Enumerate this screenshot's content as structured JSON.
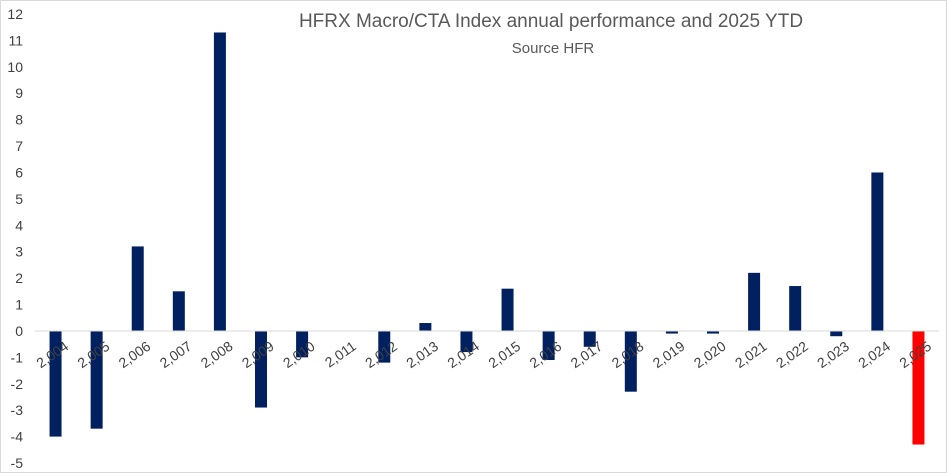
{
  "chart_data": {
    "type": "bar",
    "title": "HFRX Macro/CTA Index annual performance and 2025 YTD",
    "subtitle": "Source HFR",
    "xlabel": "",
    "ylabel": "",
    "ylim": [
      -5,
      12
    ],
    "yticks": [
      -5,
      -4,
      -3,
      -2,
      -1,
      0,
      1,
      2,
      3,
      4,
      5,
      6,
      7,
      8,
      9,
      10,
      11,
      12
    ],
    "categories": [
      "2,004",
      "2,005",
      "2,006",
      "2,007",
      "2,008",
      "2,009",
      "2,010",
      "2,011",
      "2,012",
      "2,013",
      "2,014",
      "2,015",
      "2,016",
      "2,017",
      "2,018",
      "2,019",
      "2,020",
      "2,021",
      "2,022",
      "2,023",
      "2,024",
      "2,025"
    ],
    "values": [
      -4.0,
      -3.7,
      3.2,
      1.5,
      11.3,
      -2.9,
      -1.0,
      0.0,
      -1.2,
      0.3,
      -0.8,
      1.6,
      -1.1,
      -0.6,
      -2.3,
      -0.1,
      -0.1,
      2.2,
      1.7,
      -0.2,
      6.0,
      -4.3
    ],
    "bar_color": "#002060",
    "highlight_color": "#ff0000",
    "highlight_index": 21,
    "grid": false,
    "legend": "none"
  }
}
